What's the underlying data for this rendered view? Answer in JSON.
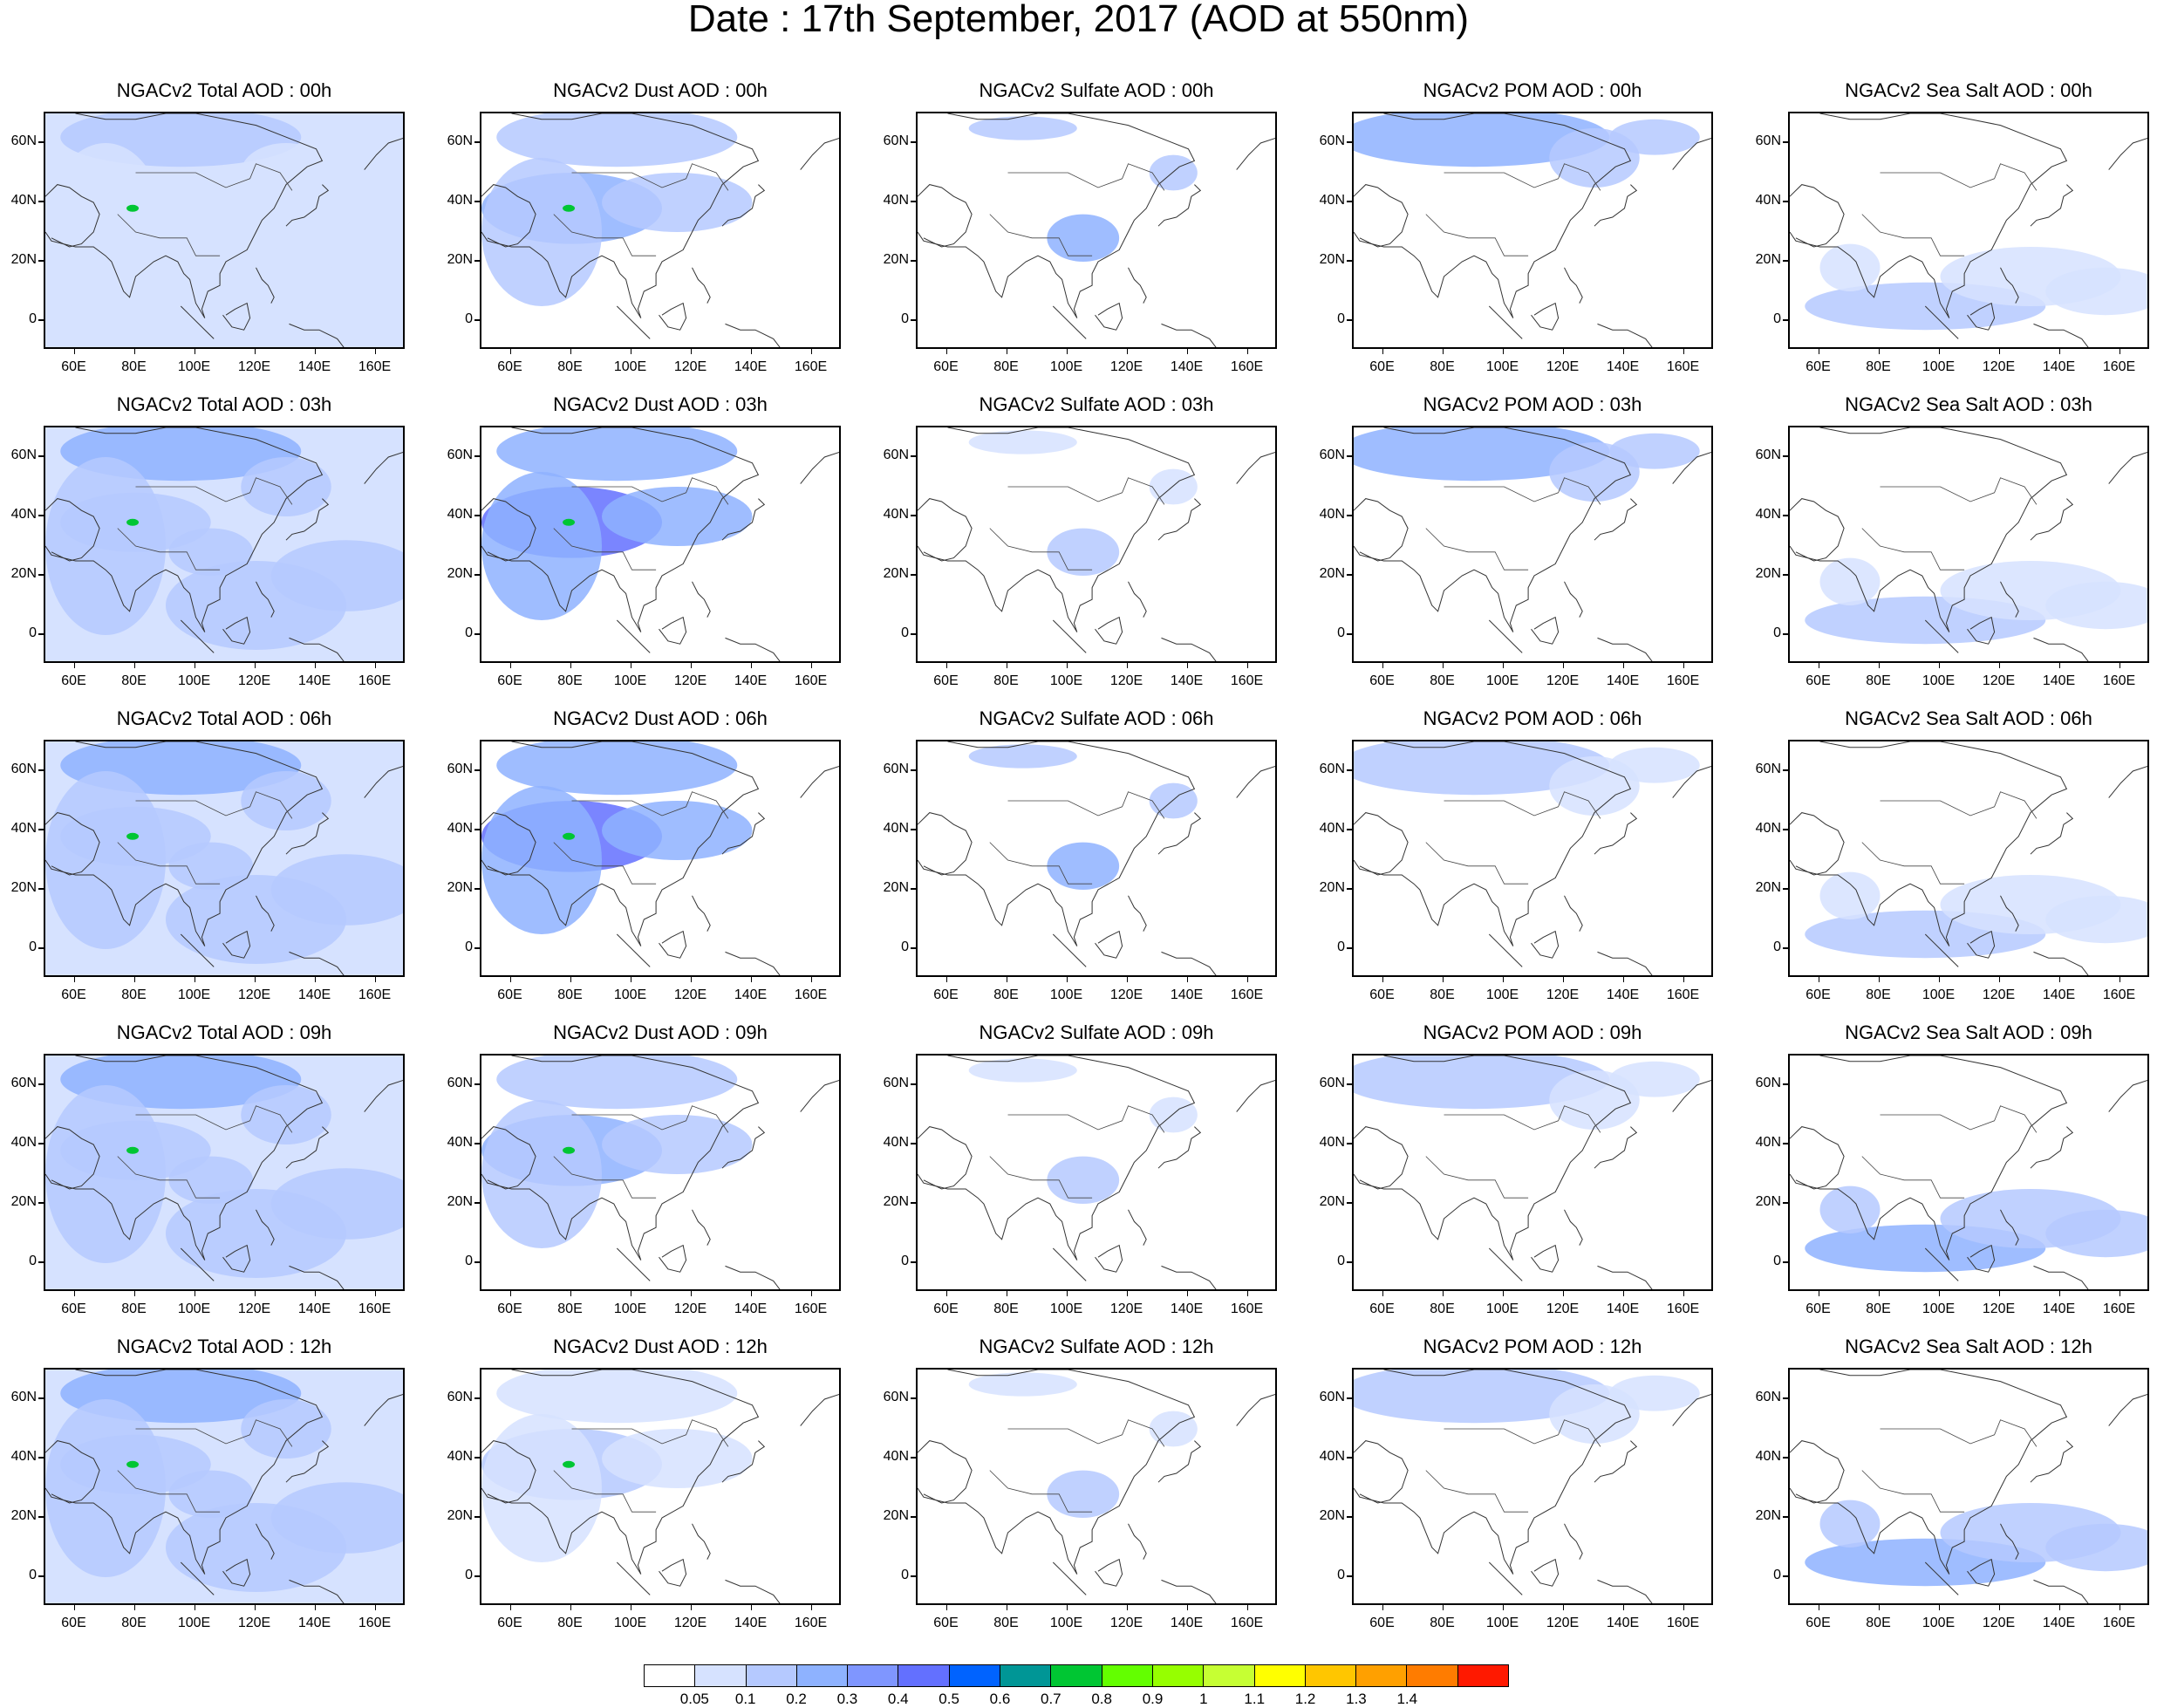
{
  "title": "Date : 17th September, 2017 (AOD at 550nm)",
  "panel_titles": [
    [
      "NGACv2 Total AOD : 00h",
      "NGACv2 Dust AOD : 00h",
      "NGACv2 Sulfate AOD : 00h",
      "NGACv2 POM AOD : 00h",
      "NGACv2 Sea Salt AOD : 00h"
    ],
    [
      "NGACv2 Total AOD : 03h",
      "NGACv2 Dust AOD : 03h",
      "NGACv2 Sulfate AOD : 03h",
      "NGACv2 POM AOD : 03h",
      "NGACv2 Sea Salt AOD : 03h"
    ],
    [
      "NGACv2 Total AOD : 06h",
      "NGACv2 Dust AOD : 06h",
      "NGACv2 Sulfate AOD : 06h",
      "NGACv2 POM AOD : 06h",
      "NGACv2 Sea Salt AOD : 06h"
    ],
    [
      "NGACv2 Total AOD : 09h",
      "NGACv2 Dust AOD : 09h",
      "NGACv2 Sulfate AOD : 09h",
      "NGACv2 POM AOD : 09h",
      "NGACv2 Sea Salt  AOD : 09h"
    ],
    [
      "NGACv2 Total AOD  : 12h",
      "NGACv2 Dust AOD : 12h",
      "NGACv2 Sulfate AOD : 12h",
      "NGACv2 POM  AOD : 12h",
      "NGACv2 Sea Salt  AOD : 12h"
    ]
  ],
  "lat_ticks": [
    "60N",
    "40N",
    "20N",
    "0"
  ],
  "lon_ticks": [
    "60E",
    "80E",
    "100E",
    "120E",
    "140E",
    "160E"
  ],
  "colorbar": {
    "colors": [
      "#ffffff",
      "#d6e2ff",
      "#b5c9ff",
      "#8eb2ff",
      "#7f96ff",
      "#6370ff",
      "#0063ff",
      "#009696",
      "#00c633",
      "#63ff00",
      "#96ff00",
      "#c6ff33",
      "#ffff00",
      "#ffc600",
      "#ffa000",
      "#ff7c00",
      "#ff1900"
    ],
    "labels": [
      "0.05",
      "0.1",
      "0.2",
      "0.3",
      "0.4",
      "0.5",
      "0.6",
      "0.7",
      "0.8",
      "0.9",
      "1",
      "1.1",
      "1.2",
      "1.3",
      "1.4"
    ]
  },
  "fields": {
    "total": [
      [
        0,
        0,
        1,
        2,
        3
      ],
      [
        1,
        1,
        2,
        4,
        2
      ],
      [
        0.5,
        1,
        1,
        1,
        2
      ],
      [
        1,
        2,
        1,
        1,
        1
      ],
      [
        1,
        1,
        0.5,
        1,
        1
      ]
    ],
    "dust": [
      [
        1,
        1,
        2,
        1,
        0
      ],
      [
        1,
        2,
        3,
        1,
        0
      ],
      [
        1,
        2,
        1,
        0,
        0
      ],
      [
        1,
        1,
        0,
        0,
        0
      ],
      [
        0.5,
        0,
        0,
        0,
        0
      ]
    ],
    "sulfate": [
      [
        0,
        0,
        1,
        0,
        0
      ],
      [
        0,
        0,
        0,
        1,
        0
      ],
      [
        0,
        0,
        1,
        2,
        0
      ],
      [
        0,
        0,
        0,
        1,
        0
      ],
      [
        0,
        0,
        0,
        0,
        0
      ]
    ],
    "pom": [
      [
        0,
        1,
        2,
        1,
        1
      ],
      [
        0,
        1,
        1,
        1,
        0
      ],
      [
        0,
        0,
        0,
        0,
        0
      ],
      [
        0,
        0,
        0,
        0,
        0
      ],
      [
        0,
        0,
        0,
        0,
        0
      ]
    ],
    "seasalt": [
      [
        0,
        0,
        0,
        0,
        0
      ],
      [
        0,
        0,
        0,
        0,
        0
      ],
      [
        0,
        0,
        0,
        0,
        0
      ],
      [
        0,
        1,
        0,
        1,
        1
      ],
      [
        1,
        1,
        1,
        1,
        1
      ]
    ]
  }
}
